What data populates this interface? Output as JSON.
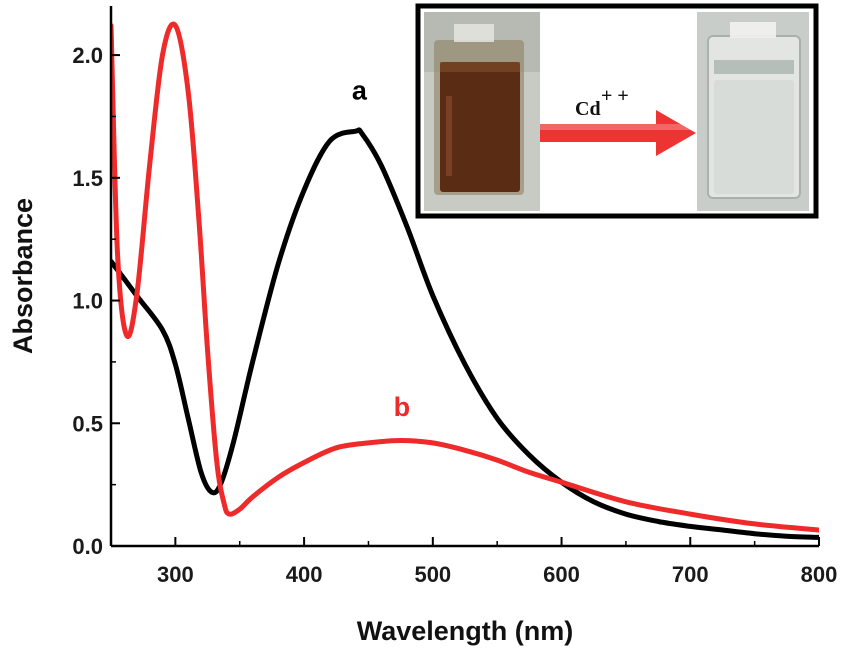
{
  "chart_data": {
    "type": "line",
    "title": "",
    "xlabel": "Wavelength (nm)",
    "ylabel": "Absorbance",
    "xlim": [
      250,
      800
    ],
    "ylim": [
      0,
      2.2
    ],
    "xticks": [
      300,
      400,
      500,
      600,
      700,
      800
    ],
    "yticks": [
      0.0,
      0.5,
      1.0,
      1.5,
      2.0
    ],
    "ytick_labels": [
      "0.0",
      "0.5",
      "1.0",
      "1.5",
      "2.0"
    ],
    "grid": false,
    "legend": "none",
    "series": [
      {
        "name": "a",
        "color": "#000000",
        "x": [
          250,
          270,
          290,
          300,
          310,
          320,
          328,
          335,
          345,
          360,
          380,
          400,
          420,
          440,
          445,
          460,
          480,
          500,
          525,
          550,
          575,
          600,
          625,
          650,
          675,
          700,
          725,
          750,
          775,
          800
        ],
        "y": [
          1.16,
          1.02,
          0.88,
          0.74,
          0.52,
          0.3,
          0.22,
          0.25,
          0.42,
          0.75,
          1.15,
          1.45,
          1.65,
          1.69,
          1.68,
          1.55,
          1.3,
          1.02,
          0.74,
          0.52,
          0.37,
          0.26,
          0.18,
          0.13,
          0.1,
          0.08,
          0.065,
          0.05,
          0.04,
          0.035
        ]
      },
      {
        "name": "b",
        "color": "#ee2a2a",
        "x": [
          250,
          255,
          262,
          270,
          280,
          290,
          300,
          310,
          318,
          325,
          332,
          338,
          342,
          350,
          360,
          380,
          400,
          425,
          450,
          475,
          500,
          525,
          550,
          575,
          600,
          650,
          700,
          750,
          800
        ],
        "y": [
          2.12,
          1.2,
          0.86,
          1.02,
          1.55,
          2.0,
          2.12,
          1.85,
          1.35,
          0.8,
          0.35,
          0.17,
          0.13,
          0.15,
          0.2,
          0.28,
          0.34,
          0.4,
          0.42,
          0.43,
          0.42,
          0.39,
          0.35,
          0.3,
          0.26,
          0.18,
          0.13,
          0.09,
          0.065
        ]
      }
    ],
    "annotations": [
      {
        "text": "a",
        "x": 443,
        "y": 1.82,
        "color": "#000000"
      },
      {
        "text": "b",
        "x": 476,
        "y": 0.53,
        "color": "#ee2a2a"
      }
    ]
  },
  "inset": {
    "reagent_label": "Cd",
    "superscript": "+ +",
    "arrow_color": "#ee3333",
    "before_solution_color": "#5a2c14",
    "after_solution_color": "#d8dcd8"
  }
}
